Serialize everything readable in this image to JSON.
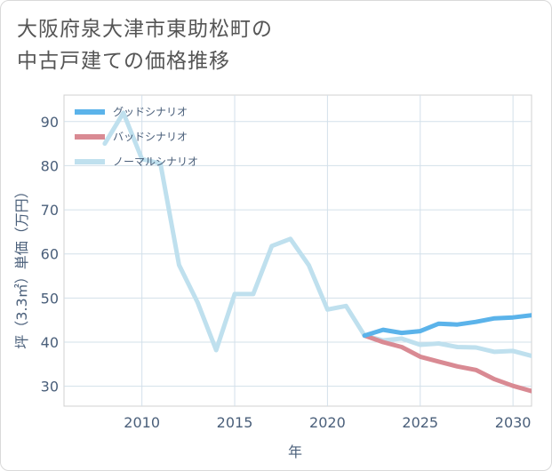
{
  "title_lines": [
    "大阪府泉大津市東助松町の",
    "中古戸建ての価格推移"
  ],
  "colors": {
    "good": "#5bb3ea",
    "bad": "#d98a93",
    "normal": "#bfe0ee",
    "grid": "#d3e0ea",
    "text": "#4a5f7a"
  },
  "chart_data": {
    "type": "line",
    "xlabel": "年",
    "ylabel": "坪（3.3㎡）単価（万円）",
    "xlim": [
      2005.8,
      2031.0
    ],
    "ylim": [
      25.5,
      96
    ],
    "xticks": [
      2010,
      2015,
      2020,
      2025,
      2030
    ],
    "yticks": [
      30,
      40,
      50,
      60,
      70,
      80,
      90
    ],
    "grid": true,
    "legend_position": "top-left",
    "series": [
      {
        "name": "グッドシナリオ",
        "color": "#5bb3ea",
        "x": [
          2022,
          2023,
          2024,
          2025,
          2026,
          2027,
          2028,
          2029,
          2030,
          2031
        ],
        "y": [
          41.5,
          42.8,
          42.1,
          42.5,
          44.2,
          44.0,
          44.6,
          45.4,
          45.6,
          46.1
        ]
      },
      {
        "name": "バッドシナリオ",
        "color": "#d98a93",
        "x": [
          2022,
          2023,
          2024,
          2025,
          2026,
          2027,
          2028,
          2029,
          2030,
          2031
        ],
        "y": [
          41.5,
          40.0,
          38.9,
          36.7,
          35.6,
          34.5,
          33.7,
          31.6,
          30.1,
          28.9
        ]
      },
      {
        "name": "ノーマルシナリオ",
        "color": "#bfe0ee",
        "x": [
          2008,
          2009,
          2010,
          2011,
          2012,
          2013,
          2014,
          2015,
          2016,
          2017,
          2018,
          2019,
          2020,
          2021,
          2022,
          2023,
          2024,
          2025,
          2026,
          2027,
          2028,
          2029,
          2030,
          2031
        ],
        "y": [
          85,
          92,
          81.5,
          80.5,
          57.5,
          49,
          38.2,
          50.9,
          50.9,
          61.8,
          63.4,
          57.4,
          47.4,
          48.2,
          41.5,
          40.4,
          40.8,
          39.4,
          39.7,
          38.9,
          38.8,
          37.8,
          38.0,
          36.9
        ]
      }
    ]
  }
}
